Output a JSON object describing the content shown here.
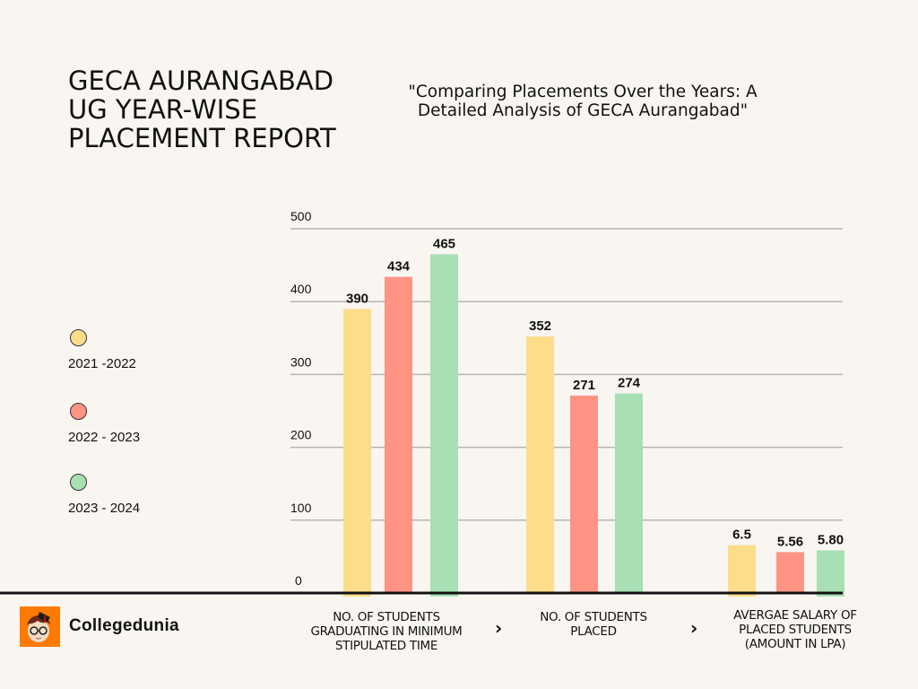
{
  "header": {
    "title_lines": [
      "GECA AURANGABAD",
      "UG YEAR-WISE",
      "PLACEMENT REPORT"
    ],
    "subtitle_lines": [
      "\"Comparing Placements Over the Years: A",
      "Detailed Analysis of GECA Aurangabad\""
    ]
  },
  "legend": [
    {
      "label": "2021 -2022",
      "color": "#fddc8a"
    },
    {
      "label": "2022 - 2023",
      "color": "#ff9485"
    },
    {
      "label": "2023 - 2024",
      "color": "#a8dfb5"
    }
  ],
  "brand": {
    "name": "Collegedunia",
    "icon": "collegedunia-mascot-logo",
    "color": "#ff7a00"
  },
  "chevrons": [
    "›",
    "›"
  ],
  "chart_data": {
    "type": "bar",
    "title": "GECA AURANGABAD UG YEAR-WISE PLACEMENT REPORT",
    "subtitle": "\"Comparing Placements Over the Years: A Detailed Analysis of GECA Aurangabad\"",
    "categories": [
      [
        "NO. OF STUDENTS",
        "GRADUATING IN MINIMUM",
        "STIPULATED TIME"
      ],
      [
        "NO. OF STUDENTS",
        "PLACED"
      ],
      [
        "AVERGAE SALARY OF",
        "PLACED STUDENTS",
        "(AMOUNT IN LPA)"
      ]
    ],
    "series": [
      {
        "name": "2021 -2022",
        "color": "#fddc8a",
        "values": [
          390,
          352,
          6.5
        ],
        "labels": [
          "390",
          "352",
          "6.5"
        ]
      },
      {
        "name": "2022 - 2023",
        "color": "#ff9485",
        "values": [
          434,
          271,
          5.56
        ],
        "labels": [
          "434",
          "271",
          "5.56"
        ]
      },
      {
        "name": "2023 - 2024",
        "color": "#a8dfb5",
        "values": [
          465,
          274,
          5.8
        ],
        "labels": [
          "465",
          "274",
          "5.80"
        ]
      }
    ],
    "yticks": [
      "0",
      "100",
      "200",
      "300",
      "400",
      "500"
    ],
    "ylim": [
      0,
      500
    ],
    "salary_group_scale_note": "third category (LPA) drawn on its own visual scale",
    "grid": true,
    "legend_position": "left",
    "xlabel": "",
    "ylabel": ""
  }
}
